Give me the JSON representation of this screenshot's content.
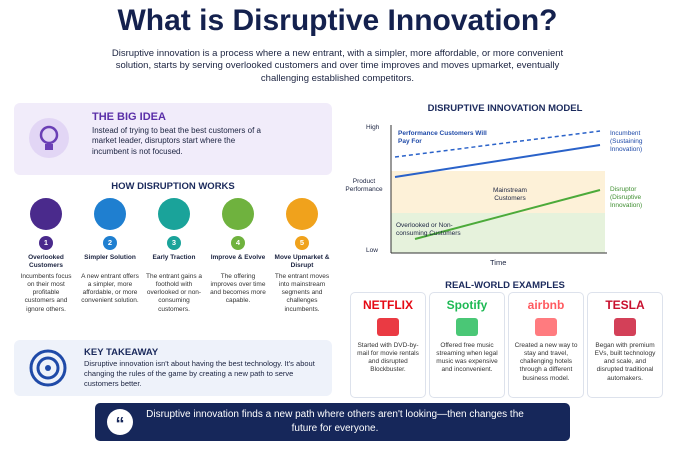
{
  "title": "What is Disruptive Innovation?",
  "intro": "Disruptive innovation is a process where a new entrant, with a simpler, more affordable, or more convenient solution, starts by serving overlooked customers and over time improves and moves upmarket, eventually challenging established competitors.",
  "big_idea": {
    "heading": "THE BIG IDEA",
    "text": "Instead of trying to beat the best customers of a market leader, disruptors start where the incumbent is not focused."
  },
  "how_it_works": {
    "heading": "HOW DISRUPTION WORKS",
    "steps": [
      {
        "number": "1",
        "title": "Overlooked Customers",
        "text": "Incumbents focus on their most profitable customers and ignore others."
      },
      {
        "number": "2",
        "title": "Simpler Solution",
        "text": "A new entrant offers a simpler, more affordable, or more convenient solution."
      },
      {
        "number": "3",
        "title": "Early Traction",
        "text": "The entrant gains a foothold with overlooked or non-consuming customers."
      },
      {
        "number": "4",
        "title": "Improve & Evolve",
        "text": "The offering improves over time and becomes more capable."
      },
      {
        "number": "5",
        "title": "Move Upmarket & Disrupt",
        "text": "The entrant moves into mainstream segments and challenges incumbents."
      }
    ]
  },
  "takeaway": {
    "heading": "KEY TAKEAWAY",
    "text": "Disruptive innovation isn't about having the best technology. It's about changing the rules of the game by creating a new path to serve customers better."
  },
  "model": {
    "title": "DISRUPTIVE INNOVATION MODEL",
    "y_high": "High",
    "y_label": "Product Performance",
    "y_low": "Low",
    "x_label": "Time",
    "performance_label": "Performance Customers Will Pay For",
    "mainstream_label": "Mainstream Customers",
    "overlooked_label": "Overlooked or Non-consuming Customers",
    "incumbent_label": "Incumbent (Sustaining Innovation)",
    "disruptor_label": "Disruptor (Disruptive Innovation)"
  },
  "examples": {
    "heading": "REAL-WORLD EXAMPLES",
    "items": [
      {
        "brand": "NETFLIX",
        "text": "Started with DVD-by-mail for movie rentals and disrupted Blockbuster."
      },
      {
        "brand": "Spotify",
        "text": "Offered free music streaming when legal music was expensive and inconvenient."
      },
      {
        "brand": "airbnb",
        "text": "Created a new way to stay and travel, challenging hotels through a different business model."
      },
      {
        "brand": "TESLA",
        "text": "Began with premium EVs, built technology and scale, and disrupted traditional automakers."
      }
    ]
  },
  "quote": "Disruptive innovation finds a new path where others aren't looking—then changes the future for everyone."
}
